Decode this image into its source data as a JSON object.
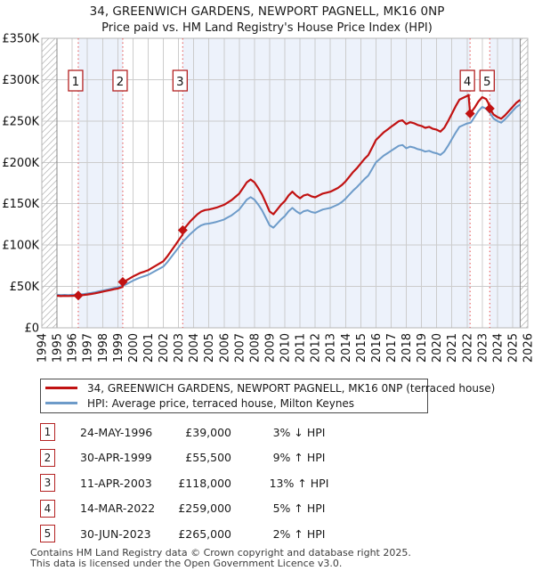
{
  "title": {
    "line1": "34, GREENWICH GARDENS, NEWPORT PAGNELL, MK16 0NP",
    "line2": "Price paid vs. HM Land Registry's House Price Index (HPI)"
  },
  "chart_data": {
    "type": "line",
    "x_range": [
      1994,
      2026
    ],
    "y_range_k": [
      0,
      350
    ],
    "units": "GBP thousands",
    "grid": true,
    "legend_position": "below",
    "data_start": 1995.0,
    "data_end": 2025.5,
    "x_ticks": [
      1994,
      1995,
      1996,
      1997,
      1998,
      1999,
      2000,
      2001,
      2002,
      2003,
      2004,
      2005,
      2006,
      2007,
      2008,
      2009,
      2010,
      2011,
      2012,
      2013,
      2014,
      2015,
      2016,
      2017,
      2018,
      2019,
      2020,
      2021,
      2022,
      2023,
      2024,
      2025,
      2026
    ],
    "y_ticks": [
      {
        "v": 0,
        "label": "£0"
      },
      {
        "v": 50,
        "label": "£50K"
      },
      {
        "v": 100,
        "label": "£100K"
      },
      {
        "v": 150,
        "label": "£150K"
      },
      {
        "v": 200,
        "label": "£200K"
      },
      {
        "v": 250,
        "label": "£250K"
      },
      {
        "v": 300,
        "label": "£300K"
      },
      {
        "v": 350,
        "label": "£350K"
      }
    ],
    "colors": {
      "price_line": "#c11212",
      "hpi_line": "#6d9bc9",
      "sale_dash": "#e96a6a",
      "band": "#edf2fb",
      "grid": "#cccccc",
      "frame": "#b5b5b5",
      "hatch": "#bcbcbc",
      "boundary": "#8a8a8a",
      "badge_border": "#b42222"
    },
    "sales": [
      {
        "n": "1",
        "x": 1996.4,
        "price_k": 39.0
      },
      {
        "n": "2",
        "x": 1999.33,
        "price_k": 55.5
      },
      {
        "n": "3",
        "x": 2003.28,
        "price_k": 118.0
      },
      {
        "n": "4",
        "x": 2022.2,
        "price_k": 259.0
      },
      {
        "n": "5",
        "x": 2023.5,
        "price_k": 265.0
      }
    ],
    "series": [
      {
        "name": "34, GREENWICH GARDENS, NEWPORT PAGNELL, MK16 0NP (terraced house)",
        "color": "#c11212",
        "x": [
          1995.0,
          1995.25,
          1995.5,
          1995.75,
          1996.0,
          1996.25,
          1996.4,
          1996.75,
          1997.0,
          1997.25,
          1997.5,
          1997.75,
          1998.0,
          1998.25,
          1998.5,
          1998.75,
          1999.0,
          1999.25,
          1999.32,
          1999.33,
          1999.5,
          1999.75,
          2000.0,
          2000.25,
          2000.5,
          2000.75,
          2001.0,
          2001.25,
          2001.5,
          2001.75,
          2002.0,
          2002.25,
          2002.5,
          2002.75,
          2003.0,
          2003.27,
          2003.28,
          2003.5,
          2003.75,
          2004.0,
          2004.25,
          2004.5,
          2004.75,
          2005.0,
          2005.25,
          2005.5,
          2005.75,
          2006.0,
          2006.25,
          2006.5,
          2006.75,
          2007.0,
          2007.25,
          2007.5,
          2007.75,
          2008.0,
          2008.25,
          2008.5,
          2008.75,
          2009.0,
          2009.25,
          2009.5,
          2009.75,
          2010.0,
          2010.25,
          2010.5,
          2010.75,
          2011.0,
          2011.25,
          2011.5,
          2011.75,
          2012.0,
          2012.25,
          2012.5,
          2012.75,
          2013.0,
          2013.25,
          2013.5,
          2013.75,
          2014.0,
          2014.25,
          2014.5,
          2014.75,
          2015.0,
          2015.25,
          2015.5,
          2015.75,
          2016.0,
          2016.25,
          2016.5,
          2016.75,
          2017.0,
          2017.25,
          2017.5,
          2017.75,
          2018.0,
          2018.25,
          2018.5,
          2018.75,
          2019.0,
          2019.25,
          2019.5,
          2019.75,
          2020.0,
          2020.25,
          2020.5,
          2020.75,
          2021.0,
          2021.25,
          2021.5,
          2021.75,
          2022.0,
          2022.1,
          2022.2,
          2022.5,
          2022.75,
          2023.0,
          2023.25,
          2023.4,
          2023.5,
          2023.75,
          2024.0,
          2024.25,
          2024.5,
          2024.75,
          2025.0,
          2025.25,
          2025.5
        ],
        "values_k": [
          38.8,
          38.3,
          38.6,
          38.4,
          38.7,
          38.8,
          39.0,
          39.6,
          40.3,
          40.9,
          41.7,
          42.7,
          43.7,
          44.6,
          45.6,
          46.6,
          47.5,
          49.0,
          49.5,
          55.5,
          56.6,
          59.3,
          62.0,
          64.2,
          66.4,
          68.0,
          69.6,
          72.4,
          75.1,
          77.8,
          80.5,
          86.0,
          92.5,
          99.0,
          105.6,
          112.6,
          118.0,
          122.6,
          128.3,
          132.8,
          137.3,
          140.7,
          142.4,
          143.0,
          144.1,
          145.3,
          147.0,
          148.7,
          151.5,
          154.4,
          158.3,
          162.3,
          169.1,
          175.9,
          179.3,
          175.9,
          169.1,
          161.2,
          151.0,
          140.7,
          137.3,
          143.0,
          148.7,
          153.2,
          160.0,
          164.6,
          160.0,
          156.6,
          160.0,
          161.2,
          158.9,
          157.8,
          160.0,
          162.3,
          163.4,
          164.6,
          166.8,
          169.1,
          172.5,
          177.1,
          182.7,
          188.4,
          193.0,
          198.6,
          204.3,
          208.8,
          217.9,
          227.0,
          231.5,
          236.1,
          239.5,
          242.9,
          246.3,
          249.7,
          250.8,
          246.3,
          248.6,
          247.4,
          245.2,
          244.0,
          241.8,
          242.9,
          240.6,
          239.5,
          237.2,
          241.8,
          249.7,
          258.8,
          267.9,
          275.8,
          278.1,
          280.3,
          281.5,
          259.0,
          266.2,
          273.5,
          278.8,
          276.7,
          272.0,
          265.0,
          257.8,
          254.8,
          252.7,
          256.8,
          261.9,
          267.0,
          272.1,
          275.5
        ]
      },
      {
        "name": "HPI: Average price, terraced house, Milton Keynes",
        "color": "#6d9bc9",
        "x_start": 1995.0,
        "x_step": 0.25,
        "values_k": [
          40.0,
          39.5,
          39.8,
          39.6,
          39.9,
          40.1,
          40.3,
          40.8,
          41.5,
          42.2,
          43.0,
          44.0,
          45.0,
          46.0,
          47.0,
          48.0,
          49.0,
          50.5,
          52.0,
          54.5,
          57.0,
          59.0,
          61.0,
          62.5,
          64.0,
          66.5,
          69.0,
          71.5,
          74.0,
          79.0,
          85.0,
          91.0,
          97.0,
          103.5,
          108.0,
          113.0,
          117.0,
          121.0,
          124.0,
          125.5,
          126.0,
          127.0,
          128.0,
          129.5,
          131.0,
          133.5,
          136.0,
          139.5,
          143.0,
          149.0,
          155.0,
          158.0,
          155.0,
          149.0,
          142.0,
          133.0,
          124.0,
          121.0,
          126.0,
          131.0,
          135.0,
          141.0,
          145.0,
          141.0,
          138.0,
          141.0,
          142.0,
          140.0,
          139.0,
          141.0,
          143.0,
          144.0,
          145.0,
          147.0,
          149.0,
          152.0,
          156.0,
          161.0,
          166.0,
          170.0,
          175.0,
          180.0,
          184.0,
          192.0,
          200.0,
          204.0,
          208.0,
          211.0,
          214.0,
          217.0,
          220.0,
          221.0,
          217.0,
          219.0,
          218.0,
          216.0,
          215.0,
          213.0,
          214.0,
          212.0,
          211.0,
          209.0,
          213.0,
          220.0,
          228.0,
          236.0,
          243.0,
          245.0,
          247.0,
          248.0,
          255.0,
          262.0,
          267.0,
          265.0,
          260.0,
          253.0,
          250.0,
          248.0,
          252.0,
          257.0,
          262.0,
          267.0,
          270.0
        ]
      }
    ]
  },
  "transactions": [
    {
      "num": "1",
      "date": "24-MAY-1996",
      "price": "£39,000",
      "vs_hpi": "3% ↓ HPI"
    },
    {
      "num": "2",
      "date": "30-APR-1999",
      "price": "£55,500",
      "vs_hpi": "9% ↑ HPI"
    },
    {
      "num": "3",
      "date": "11-APR-2003",
      "price": "£118,000",
      "vs_hpi": "13% ↑ HPI"
    },
    {
      "num": "4",
      "date": "14-MAR-2022",
      "price": "£259,000",
      "vs_hpi": "5% ↑ HPI"
    },
    {
      "num": "5",
      "date": "30-JUN-2023",
      "price": "£265,000",
      "vs_hpi": "2% ↑ HPI"
    }
  ],
  "footer": {
    "line1": "Contains HM Land Registry data © Crown copyright and database right 2025.",
    "line2": "This data is licensed under the Open Government Licence v3.0."
  }
}
